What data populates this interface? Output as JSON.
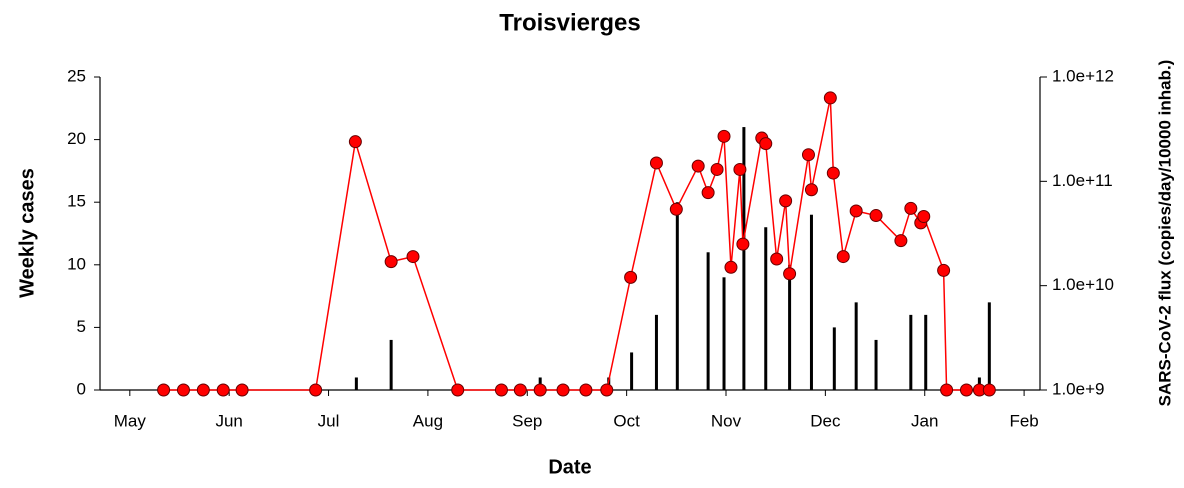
{
  "chart_data": {
    "type": "combo",
    "title": "Troisvierges",
    "x_label": "Date",
    "y_label": "Weekly cases",
    "y2_label": "SARS-CoV-2 flux (copies/day/10000 inhab.)",
    "xlim": [
      4.7,
      14.16
    ],
    "xticks": [
      {
        "value": 5,
        "label": "May"
      },
      {
        "value": 6,
        "label": "Jun"
      },
      {
        "value": 7,
        "label": "Jul"
      },
      {
        "value": 8,
        "label": "Aug"
      },
      {
        "value": 9,
        "label": "Sep"
      },
      {
        "value": 10,
        "label": "Oct"
      },
      {
        "value": 11,
        "label": "Nov"
      },
      {
        "value": 12,
        "label": "Dec"
      },
      {
        "value": 13,
        "label": "Jan"
      },
      {
        "value": 14,
        "label": "Feb"
      }
    ],
    "ylim": [
      0,
      25
    ],
    "yticks": [
      0,
      5,
      10,
      15,
      20,
      25
    ],
    "y2lim": [
      1000000000.0,
      1000000000000.0
    ],
    "y2_log": true,
    "y2ticks": [
      {
        "value": 1000000000.0,
        "label": "1.0e+9"
      },
      {
        "value": 10000000000.0,
        "label": "1.0e+10"
      },
      {
        "value": 100000000000.0,
        "label": "1.0e+11"
      },
      {
        "value": 1000000000000.0,
        "label": "1.0e+12"
      }
    ],
    "series": [
      {
        "type": "bar",
        "color": "#000000",
        "x": [
          7.28,
          7.63,
          9.13,
          9.82,
          10.05,
          10.3,
          10.51,
          10.82,
          10.98,
          11.18,
          11.4,
          11.64,
          11.86,
          12.09,
          12.31,
          12.51,
          12.86,
          13.01,
          13.55,
          13.65
        ],
        "values": [
          1,
          4,
          1,
          1,
          3,
          6,
          15,
          11,
          9,
          21,
          13,
          10,
          14,
          5,
          7,
          4,
          6,
          6,
          1,
          7
        ]
      },
      {
        "type": "line",
        "axis": "y2",
        "color": "#ff0000",
        "x": [
          5.34,
          5.54,
          5.74,
          5.94,
          6.13,
          6.87,
          7.27,
          7.63,
          7.85,
          8.3,
          8.74,
          8.93,
          9.13,
          9.36,
          9.59,
          9.8,
          10.04,
          10.3,
          10.5,
          10.72,
          10.82,
          10.91,
          10.98,
          11.05,
          11.14,
          11.17,
          11.36,
          11.4,
          11.51,
          11.6,
          11.64,
          11.83,
          11.86,
          12.05,
          12.08,
          12.18,
          12.31,
          12.51,
          12.76,
          12.86,
          12.96,
          12.99,
          13.19,
          13.22,
          13.42,
          13.55,
          13.65
        ],
        "values": [
          1000000000.0,
          1000000000.0,
          1000000000.0,
          1000000000.0,
          1000000000.0,
          1000000000.0,
          240000000000.0,
          17000000000.0,
          19000000000.0,
          1000000000.0,
          1000000000.0,
          1000000000.0,
          1000000000.0,
          1000000000.0,
          1000000000.0,
          1000000000.0,
          12000000000.0,
          150000000000.0,
          54000000000.0,
          140000000000.0,
          78000000000.0,
          130000000000.0,
          270000000000.0,
          15000000000.0,
          130000000000.0,
          25000000000.0,
          260000000000.0,
          230000000000.0,
          18000000000.0,
          65000000000.0,
          13000000000.0,
          180000000000.0,
          83000000000.0,
          630000000000.0,
          120000000000.0,
          19000000000.0,
          52000000000.0,
          47000000000.0,
          27000000000.0,
          55000000000.0,
          40000000000.0,
          46000000000.0,
          14000000000.0,
          1000000000.0,
          1000000000.0,
          1000000000.0,
          1000000000.0
        ]
      }
    ]
  }
}
